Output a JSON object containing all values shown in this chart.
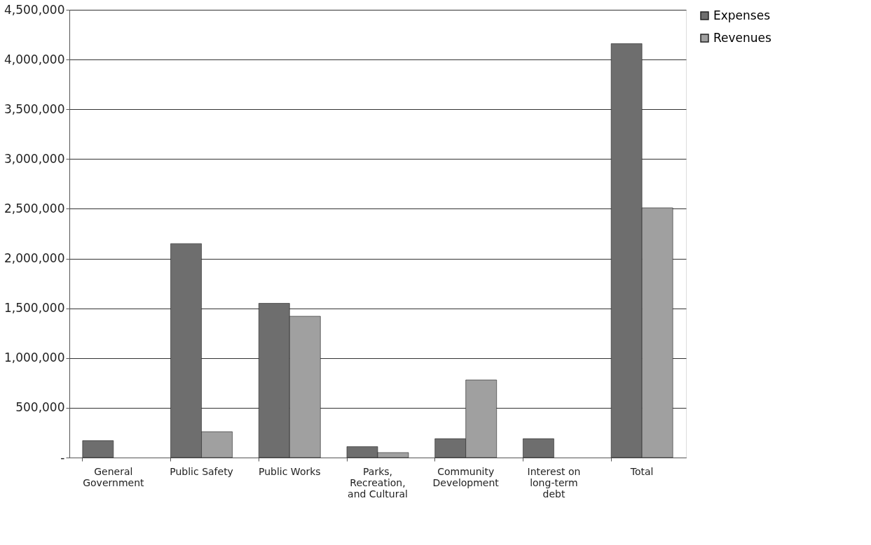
{
  "chart_data": {
    "type": "bar",
    "categories": [
      "General Government",
      "Public Safety",
      "Public Works",
      "Parks, Recreation, and Cultural",
      "Community Development",
      "Interest on long-term debt",
      "Total"
    ],
    "series": [
      {
        "name": "Expenses",
        "color": "#6e6e6e",
        "values": [
          170000,
          2150000,
          1550000,
          110000,
          190000,
          190000,
          4160000
        ]
      },
      {
        "name": "Revenues",
        "color": "#a0a0a0",
        "values": [
          null,
          260000,
          1420000,
          50000,
          780000,
          null,
          2510000
        ]
      }
    ],
    "ylim": [
      0,
      4500000
    ],
    "yticks": [
      {
        "value": 0,
        "label": "-"
      },
      {
        "value": 500000,
        "label": "500,000"
      },
      {
        "value": 1000000,
        "label": "1,000,000"
      },
      {
        "value": 1500000,
        "label": "1,500,000"
      },
      {
        "value": 2000000,
        "label": "2,000,000"
      },
      {
        "value": 2500000,
        "label": "2,500,000"
      },
      {
        "value": 3000000,
        "label": "3,000,000"
      },
      {
        "value": 3500000,
        "label": "3,500,000"
      },
      {
        "value": 4000000,
        "label": "4,000,000"
      },
      {
        "value": 4500000,
        "label": "4,500,000"
      }
    ],
    "grid": "y",
    "legend": "right"
  }
}
